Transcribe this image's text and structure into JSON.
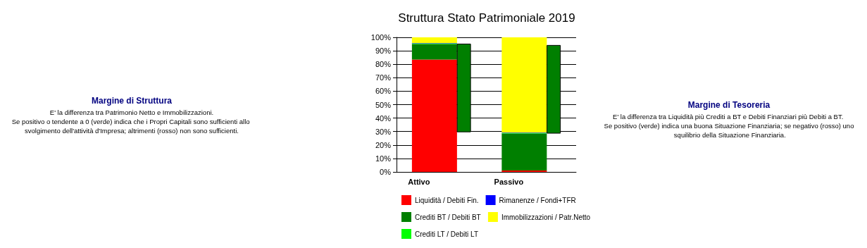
{
  "chart_data": {
    "type": "bar",
    "title": "Struttura Stato Patrimoniale 2019",
    "categories": [
      "Attivo",
      null,
      "Passivo",
      null
    ],
    "stacked": true,
    "series": [
      {
        "name": "Liquidità / Debiti Fin.",
        "color": "#ff0000",
        "values": [
          83.5,
          null,
          1,
          null
        ]
      },
      {
        "name": "Crediti BT / Debiti BT",
        "color": "#007f00",
        "values": [
          11.5,
          null,
          27.5,
          null
        ]
      },
      {
        "name": "Crediti LT / Debiti LT",
        "color": "#00ff00",
        "values": [
          0.5,
          null,
          0.5,
          null
        ]
      },
      {
        "name": "Rimanenze / Fondi+TFR",
        "color": "#0000ff",
        "values": [
          0.3,
          null,
          0.3,
          null
        ]
      },
      {
        "name": "Immobilizzazioni / Patr.Netto",
        "color": "#ffff00",
        "values": [
          4.2,
          null,
          70.7,
          null
        ]
      },
      {
        "color": "#007f00",
        "values": [
          null,
          65.8,
          null,
          65.8
        ],
        "base": [
          null,
          29.5,
          null,
          28.5
        ]
      }
    ],
    "ylim": [
      0,
      100
    ],
    "yticks": [
      {
        "value": 0,
        "label": "0%"
      },
      {
        "value": 10,
        "label": "10%"
      },
      {
        "value": 20,
        "label": "20%"
      },
      {
        "value": 30,
        "label": "30%"
      },
      {
        "value": 40,
        "label": "40%"
      },
      {
        "value": 50,
        "label": "50%"
      },
      {
        "value": 60,
        "label": "60%"
      },
      {
        "value": 70,
        "label": "70%"
      },
      {
        "value": 80,
        "label": "80%"
      },
      {
        "value": 90,
        "label": "90%"
      },
      {
        "value": 100,
        "label": "100%"
      }
    ],
    "grid": "y",
    "legend": "bottom",
    "annotations": [
      "Margine di Struttura",
      "E' la differenza tra Patrimonio Netto e Immobilizzazioni.\nSe positivo o tendente a 0 (verde) indica che i Propri Capitali sono sufficienti allo svolgimento dell'attività d'Impresa; altrimenti (rosso) non sono sufficienti.",
      "Margine di Tesoreria",
      "E' la differenza tra Liquidità più Crediti a BT e Debiti Finanziari più Debiti a BT. Se positivo (verde) indica una buona Situazione Finanziaria; se negativo (rosso) uno squilibrio della Situazione Finanziaria."
    ]
  }
}
